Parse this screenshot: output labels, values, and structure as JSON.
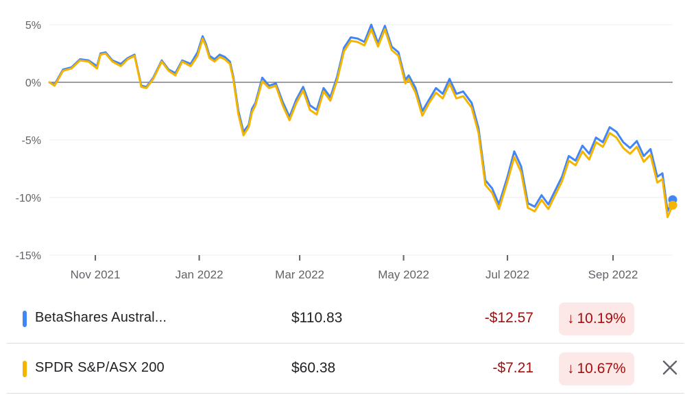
{
  "chart_data": {
    "type": "line",
    "ylim": [
      -15,
      5
    ],
    "y_ticks": [
      "5%",
      "0%",
      "-5%",
      "-10%",
      "-15%"
    ],
    "y_tick_values": [
      5,
      0,
      -5,
      -10,
      -15
    ],
    "x_ticks": [
      "Nov 2021",
      "Jan 2022",
      "Mar 2022",
      "May 2022",
      "Jul 2022",
      "Sep 2022"
    ],
    "x_range": [
      "2021-10-05",
      "2022-10-06"
    ],
    "x_tick_dates": [
      "2021-11-01",
      "2022-01-01",
      "2022-03-01",
      "2022-05-01",
      "2022-07-01",
      "2022-09-01"
    ],
    "baseline": 0,
    "grid": true,
    "series": [
      {
        "name": "BetaShares Austral...",
        "color": "#4285f4",
        "x": [
          "2021-10-05",
          "2021-10-08",
          "2021-10-13",
          "2021-10-18",
          "2021-10-23",
          "2021-10-28",
          "2021-11-02",
          "2021-11-04",
          "2021-11-07",
          "2021-11-11",
          "2021-11-16",
          "2021-11-20",
          "2021-11-24",
          "2021-11-28",
          "2021-12-01",
          "2021-12-05",
          "2021-12-10",
          "2021-12-14",
          "2021-12-18",
          "2021-12-22",
          "2021-12-27",
          "2021-12-31",
          "2022-01-03",
          "2022-01-05",
          "2022-01-07",
          "2022-01-10",
          "2022-01-13",
          "2022-01-16",
          "2022-01-19",
          "2022-01-21",
          "2022-01-24",
          "2022-01-27",
          "2022-01-30",
          "2022-02-01",
          "2022-02-03",
          "2022-02-07",
          "2022-02-11",
          "2022-02-15",
          "2022-02-19",
          "2022-02-23",
          "2022-02-27",
          "2022-03-03",
          "2022-03-07",
          "2022-03-11",
          "2022-03-15",
          "2022-03-19",
          "2022-03-23",
          "2022-03-27",
          "2022-03-31",
          "2022-04-04",
          "2022-04-08",
          "2022-04-12",
          "2022-04-16",
          "2022-04-20",
          "2022-04-24",
          "2022-04-28",
          "2022-05-02",
          "2022-05-04",
          "2022-05-08",
          "2022-05-12",
          "2022-05-16",
          "2022-05-20",
          "2022-05-24",
          "2022-05-28",
          "2022-06-01",
          "2022-06-05",
          "2022-06-10",
          "2022-06-14",
          "2022-06-18",
          "2022-06-22",
          "2022-06-26",
          "2022-07-01",
          "2022-07-05",
          "2022-07-09",
          "2022-07-13",
          "2022-07-17",
          "2022-07-21",
          "2022-07-25",
          "2022-07-29",
          "2022-08-02",
          "2022-08-06",
          "2022-08-10",
          "2022-08-14",
          "2022-08-18",
          "2022-08-22",
          "2022-08-26",
          "2022-08-30",
          "2022-09-03",
          "2022-09-07",
          "2022-09-11",
          "2022-09-15",
          "2022-09-19",
          "2022-09-23",
          "2022-09-27",
          "2022-09-30",
          "2022-10-03",
          "2022-10-06"
        ],
        "values": [
          0.0,
          -0.2,
          1.1,
          1.3,
          2.0,
          1.9,
          1.4,
          2.5,
          2.6,
          1.9,
          1.6,
          2.1,
          2.4,
          -0.3,
          -0.4,
          0.4,
          1.9,
          1.1,
          0.8,
          1.9,
          1.6,
          2.6,
          4.0,
          3.3,
          2.3,
          2.0,
          2.4,
          2.2,
          1.8,
          0.5,
          -2.5,
          -4.3,
          -3.7,
          -2.3,
          -1.8,
          0.4,
          -0.3,
          -0.1,
          -1.7,
          -3.0,
          -1.5,
          -0.4,
          -2.0,
          -2.4,
          -0.5,
          -1.3,
          0.5,
          3.0,
          3.9,
          3.8,
          3.5,
          5.0,
          3.4,
          4.9,
          3.1,
          2.6,
          0.2,
          0.6,
          -0.5,
          -2.5,
          -1.5,
          -0.5,
          -1.0,
          0.3,
          -1.0,
          -0.8,
          -1.8,
          -4.0,
          -8.5,
          -9.2,
          -10.6,
          -8.2,
          -6.0,
          -7.3,
          -10.5,
          -10.8,
          -9.8,
          -10.6,
          -9.4,
          -8.2,
          -6.4,
          -6.8,
          -5.5,
          -6.2,
          -4.8,
          -5.2,
          -3.9,
          -4.3,
          -5.2,
          -5.7,
          -5.1,
          -6.4,
          -5.8,
          -8.2,
          -7.9,
          -11.2,
          -10.19
        ]
      },
      {
        "name": "SPDR S&P/ASX 200",
        "color": "#f4b400",
        "x": [
          "2021-10-05",
          "2021-10-08",
          "2021-10-13",
          "2021-10-18",
          "2021-10-23",
          "2021-10-28",
          "2021-11-02",
          "2021-11-04",
          "2021-11-07",
          "2021-11-11",
          "2021-11-16",
          "2021-11-20",
          "2021-11-24",
          "2021-11-28",
          "2021-12-01",
          "2021-12-05",
          "2021-12-10",
          "2021-12-14",
          "2021-12-18",
          "2021-12-22",
          "2021-12-27",
          "2021-12-31",
          "2022-01-03",
          "2022-01-05",
          "2022-01-07",
          "2022-01-10",
          "2022-01-13",
          "2022-01-16",
          "2022-01-19",
          "2022-01-21",
          "2022-01-24",
          "2022-01-27",
          "2022-01-30",
          "2022-02-01",
          "2022-02-03",
          "2022-02-07",
          "2022-02-11",
          "2022-02-15",
          "2022-02-19",
          "2022-02-23",
          "2022-02-27",
          "2022-03-03",
          "2022-03-07",
          "2022-03-11",
          "2022-03-15",
          "2022-03-19",
          "2022-03-23",
          "2022-03-27",
          "2022-03-31",
          "2022-04-04",
          "2022-04-08",
          "2022-04-12",
          "2022-04-16",
          "2022-04-20",
          "2022-04-24",
          "2022-04-28",
          "2022-05-02",
          "2022-05-04",
          "2022-05-08",
          "2022-05-12",
          "2022-05-16",
          "2022-05-20",
          "2022-05-24",
          "2022-05-28",
          "2022-06-01",
          "2022-06-05",
          "2022-06-10",
          "2022-06-14",
          "2022-06-18",
          "2022-06-22",
          "2022-06-26",
          "2022-07-01",
          "2022-07-05",
          "2022-07-09",
          "2022-07-13",
          "2022-07-17",
          "2022-07-21",
          "2022-07-25",
          "2022-07-29",
          "2022-08-02",
          "2022-08-06",
          "2022-08-10",
          "2022-08-14",
          "2022-08-18",
          "2022-08-22",
          "2022-08-26",
          "2022-08-30",
          "2022-09-03",
          "2022-09-07",
          "2022-09-11",
          "2022-09-15",
          "2022-09-19",
          "2022-09-23",
          "2022-09-27",
          "2022-09-30",
          "2022-10-03",
          "2022-10-06"
        ],
        "values": [
          0.0,
          -0.3,
          1.0,
          1.2,
          1.9,
          1.8,
          1.2,
          2.4,
          2.5,
          1.8,
          1.4,
          2.0,
          2.3,
          -0.4,
          -0.5,
          0.3,
          1.8,
          1.0,
          0.6,
          1.8,
          1.4,
          2.3,
          3.8,
          3.1,
          2.1,
          1.8,
          2.2,
          2.0,
          1.6,
          0.3,
          -2.8,
          -4.6,
          -3.9,
          -2.6,
          -2.0,
          0.1,
          -0.5,
          -0.3,
          -2.0,
          -3.3,
          -1.8,
          -0.7,
          -2.4,
          -2.8,
          -0.8,
          -1.6,
          0.2,
          2.7,
          3.6,
          3.5,
          3.2,
          4.6,
          3.1,
          4.6,
          2.8,
          2.3,
          -0.1,
          0.3,
          -0.9,
          -2.9,
          -1.8,
          -0.9,
          -1.4,
          -0.1,
          -1.4,
          -1.2,
          -2.2,
          -4.4,
          -8.9,
          -9.6,
          -11.0,
          -8.6,
          -6.5,
          -7.8,
          -10.9,
          -11.2,
          -10.2,
          -11.0,
          -9.8,
          -8.6,
          -6.8,
          -7.2,
          -6.0,
          -6.7,
          -5.2,
          -5.6,
          -4.4,
          -4.8,
          -5.7,
          -6.2,
          -5.6,
          -6.9,
          -6.3,
          -8.7,
          -8.4,
          -11.7,
          -10.67
        ]
      }
    ]
  },
  "legend": {
    "rows": [
      {
        "name": "BetaShares Austral...",
        "color": "#4285f4",
        "price": "$110.83",
        "change": "-$12.57",
        "percent": "10.19%",
        "closable": false
      },
      {
        "name": "SPDR S&P/ASX 200",
        "color": "#f4b400",
        "price": "$60.38",
        "change": "-$7.21",
        "percent": "10.67%",
        "closable": true
      }
    ],
    "down_arrow_icon": "arrow-down-icon",
    "close_icon": "close-icon",
    "close_symbol": "✕",
    "arrow_symbol": "↓"
  }
}
